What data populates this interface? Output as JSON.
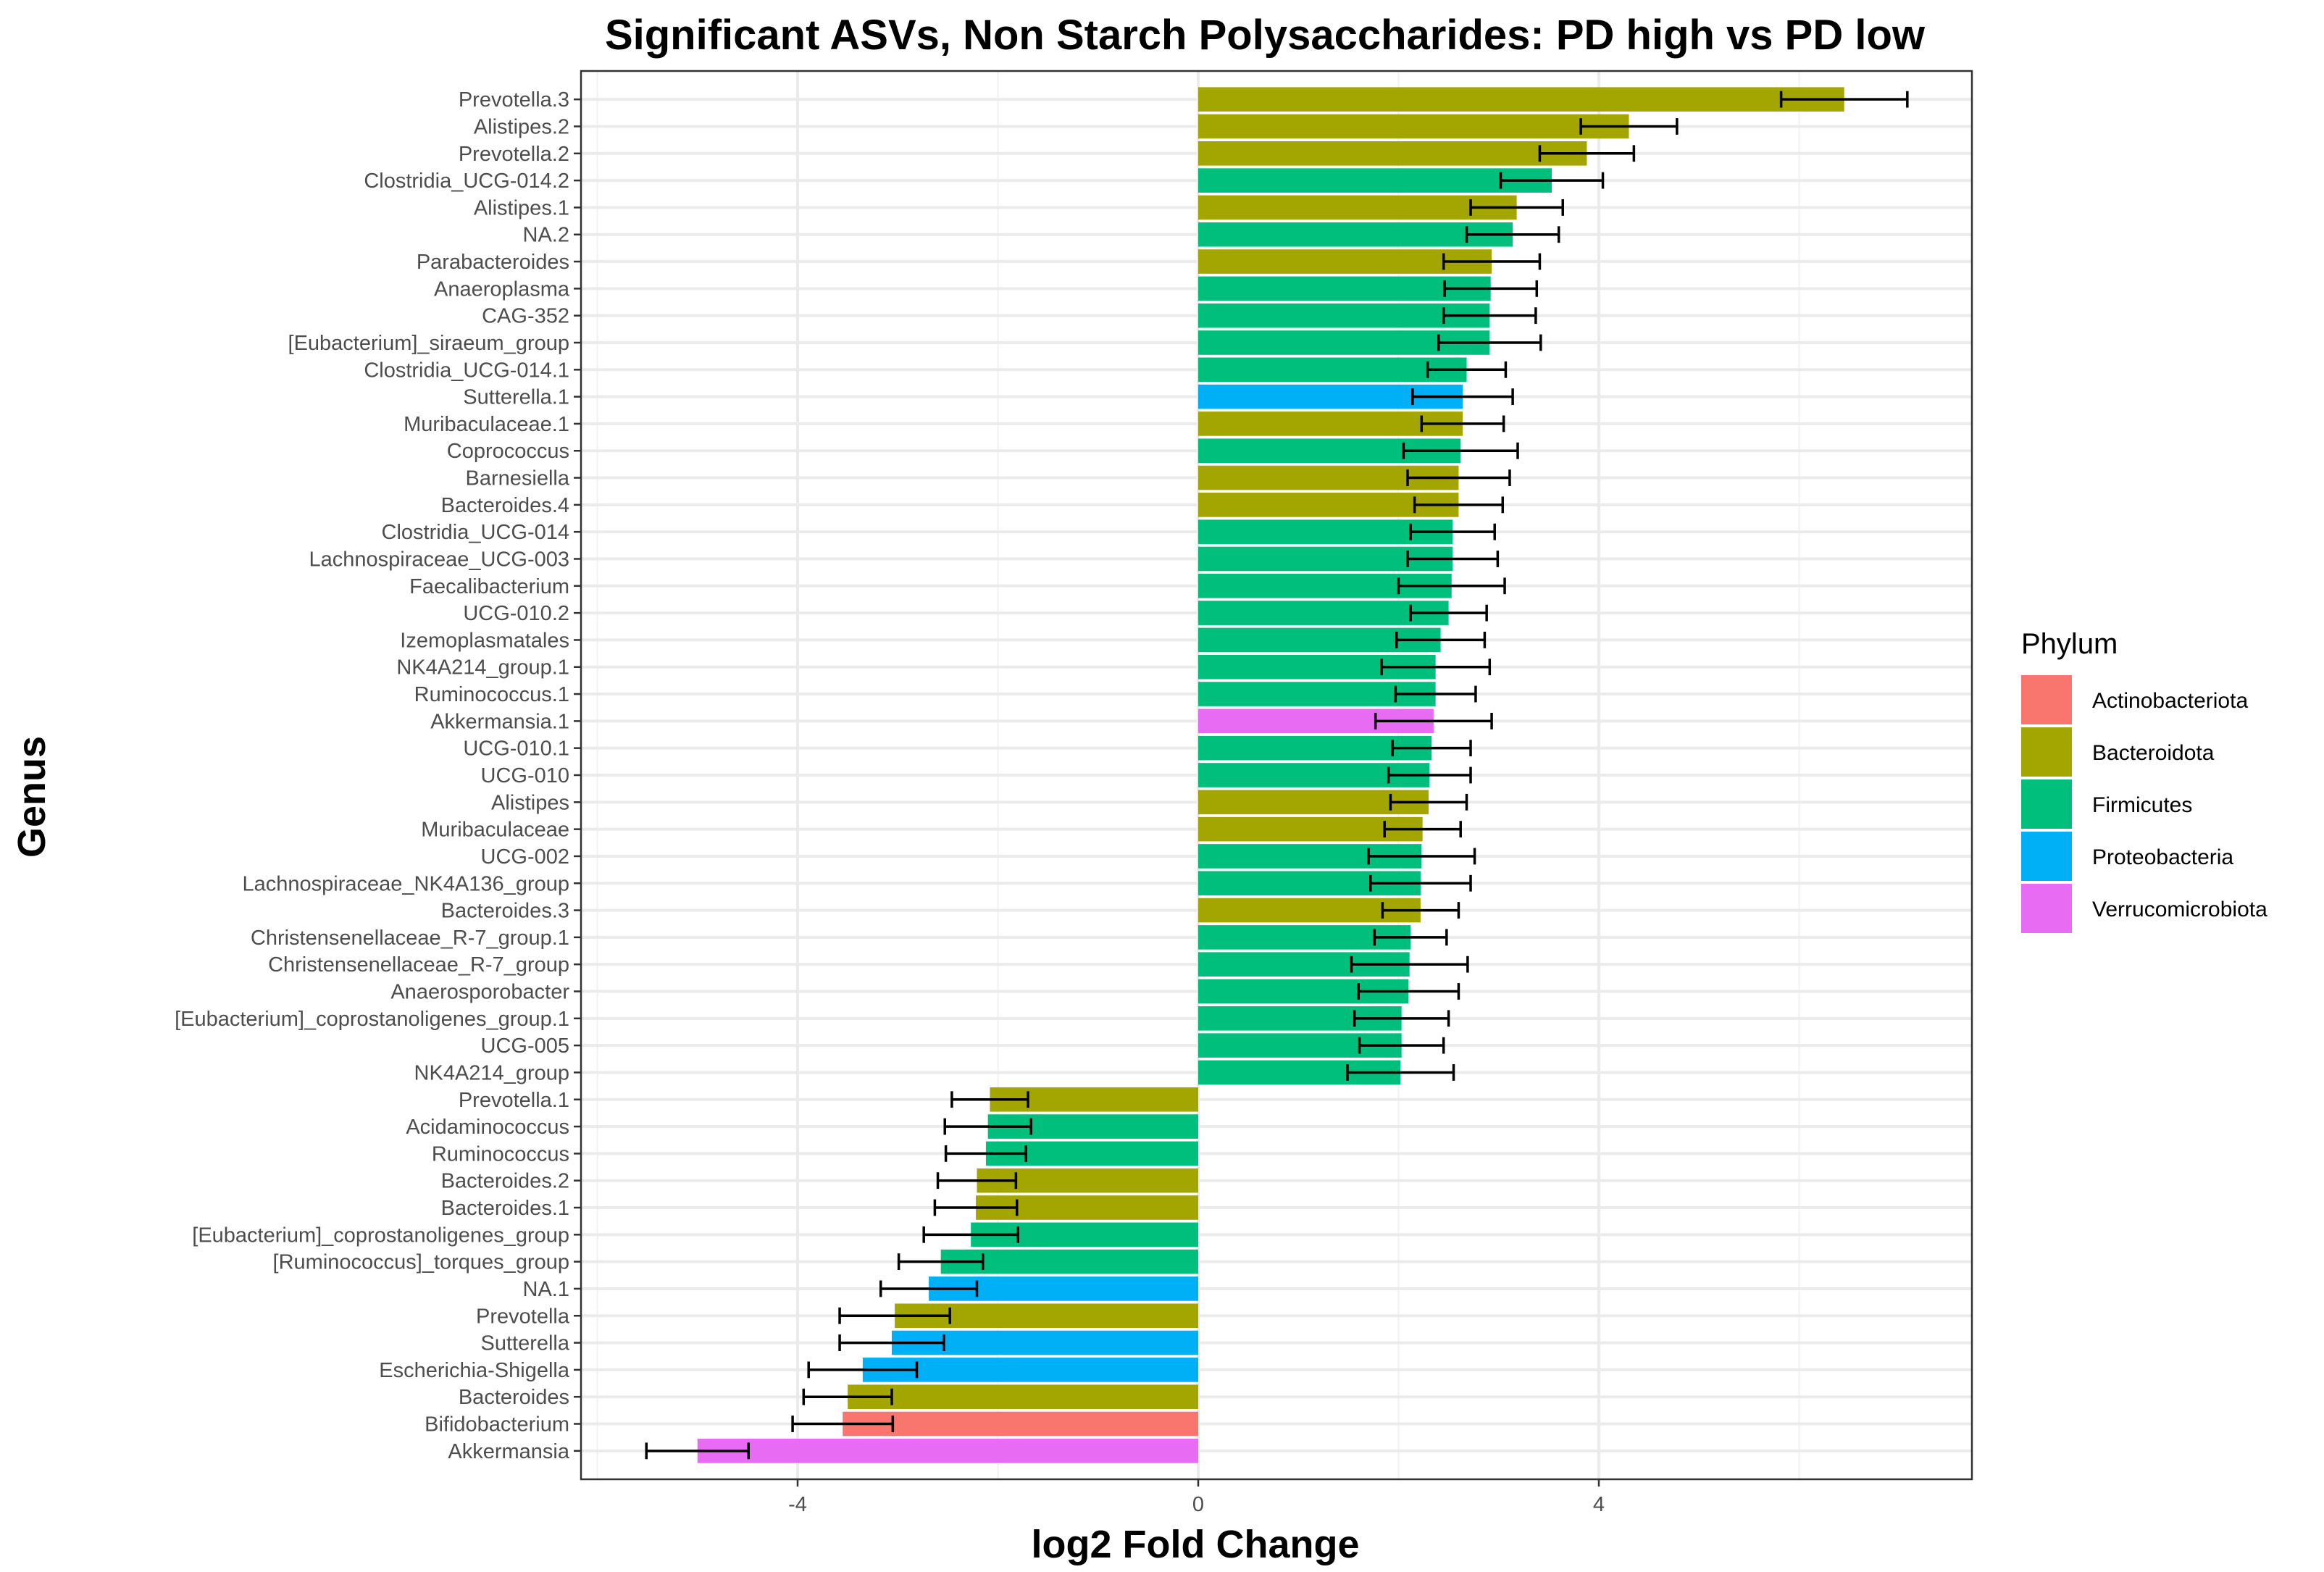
{
  "chart_data": {
    "type": "bar",
    "orientation": "horizontal",
    "title": "Significant ASVs, Non Starch Polysaccharides: PD high vs PD low",
    "xlabel": "log2 Fold Change",
    "ylabel": "Genus",
    "xlim": [
      -6.2,
      7.8
    ],
    "xticks": [
      -4,
      0,
      4
    ],
    "xtick_labels": [
      "-4",
      "0",
      "4"
    ],
    "grid": true,
    "legend": {
      "title": "Phylum",
      "position": "right",
      "entries": [
        {
          "label": "Actinobacteriota",
          "color": "#F8766D"
        },
        {
          "label": "Bacteroidota",
          "color": "#A3A500"
        },
        {
          "label": "Firmicutes",
          "color": "#00BF7D"
        },
        {
          "label": "Proteobacteria",
          "color": "#00B0F6"
        },
        {
          "label": "Verrucomicrobiota",
          "color": "#E76BF3"
        }
      ]
    },
    "bars": [
      {
        "genus": "Prevotella.3",
        "phylum": "Bacteroidota",
        "value": 6.45,
        "err_low": 5.82,
        "err_high": 7.08
      },
      {
        "genus": "Alistipes.2",
        "phylum": "Bacteroidota",
        "value": 4.3,
        "err_low": 3.82,
        "err_high": 4.78
      },
      {
        "genus": "Prevotella.2",
        "phylum": "Bacteroidota",
        "value": 3.88,
        "err_low": 3.41,
        "err_high": 4.35
      },
      {
        "genus": "Clostridia_UCG-014.2",
        "phylum": "Firmicutes",
        "value": 3.53,
        "err_low": 3.02,
        "err_high": 4.04
      },
      {
        "genus": "Alistipes.1",
        "phylum": "Bacteroidota",
        "value": 3.18,
        "err_low": 2.72,
        "err_high": 3.64
      },
      {
        "genus": "NA.2",
        "phylum": "Firmicutes",
        "value": 3.14,
        "err_low": 2.68,
        "err_high": 3.6
      },
      {
        "genus": "Parabacteroides",
        "phylum": "Bacteroidota",
        "value": 2.93,
        "err_low": 2.45,
        "err_high": 3.41
      },
      {
        "genus": "Anaeroplasma",
        "phylum": "Firmicutes",
        "value": 2.92,
        "err_low": 2.46,
        "err_high": 3.38
      },
      {
        "genus": "CAG-352",
        "phylum": "Firmicutes",
        "value": 2.91,
        "err_low": 2.45,
        "err_high": 3.37
      },
      {
        "genus": "[Eubacterium]_siraeum_group",
        "phylum": "Firmicutes",
        "value": 2.91,
        "err_low": 2.4,
        "err_high": 3.42
      },
      {
        "genus": "Clostridia_UCG-014.1",
        "phylum": "Firmicutes",
        "value": 2.68,
        "err_low": 2.29,
        "err_high": 3.07
      },
      {
        "genus": "Sutterella.1",
        "phylum": "Proteobacteria",
        "value": 2.64,
        "err_low": 2.14,
        "err_high": 3.14
      },
      {
        "genus": "Muribaculaceae.1",
        "phylum": "Bacteroidota",
        "value": 2.64,
        "err_low": 2.23,
        "err_high": 3.05
      },
      {
        "genus": "Coprococcus",
        "phylum": "Firmicutes",
        "value": 2.62,
        "err_low": 2.05,
        "err_high": 3.19
      },
      {
        "genus": "Barnesiella",
        "phylum": "Bacteroidota",
        "value": 2.6,
        "err_low": 2.09,
        "err_high": 3.11
      },
      {
        "genus": "Bacteroides.4",
        "phylum": "Bacteroidota",
        "value": 2.6,
        "err_low": 2.16,
        "err_high": 3.04
      },
      {
        "genus": "Clostridia_UCG-014",
        "phylum": "Firmicutes",
        "value": 2.54,
        "err_low": 2.12,
        "err_high": 2.96
      },
      {
        "genus": "Lachnospiraceae_UCG-003",
        "phylum": "Firmicutes",
        "value": 2.54,
        "err_low": 2.09,
        "err_high": 2.99
      },
      {
        "genus": "Faecalibacterium",
        "phylum": "Firmicutes",
        "value": 2.53,
        "err_low": 2.0,
        "err_high": 3.06
      },
      {
        "genus": "UCG-010.2",
        "phylum": "Firmicutes",
        "value": 2.5,
        "err_low": 2.12,
        "err_high": 2.88
      },
      {
        "genus": "Izemoplasmatales",
        "phylum": "Firmicutes",
        "value": 2.42,
        "err_low": 1.98,
        "err_high": 2.86
      },
      {
        "genus": "NK4A214_group.1",
        "phylum": "Firmicutes",
        "value": 2.37,
        "err_low": 1.83,
        "err_high": 2.91
      },
      {
        "genus": "Ruminococcus.1",
        "phylum": "Firmicutes",
        "value": 2.37,
        "err_low": 1.97,
        "err_high": 2.77
      },
      {
        "genus": "Akkermansia.1",
        "phylum": "Verrucomicrobiota",
        "value": 2.35,
        "err_low": 1.77,
        "err_high": 2.93
      },
      {
        "genus": "UCG-010.1",
        "phylum": "Firmicutes",
        "value": 2.33,
        "err_low": 1.94,
        "err_high": 2.72
      },
      {
        "genus": "UCG-010",
        "phylum": "Firmicutes",
        "value": 2.31,
        "err_low": 1.9,
        "err_high": 2.72
      },
      {
        "genus": "Alistipes",
        "phylum": "Bacteroidota",
        "value": 2.3,
        "err_low": 1.92,
        "err_high": 2.68
      },
      {
        "genus": "Muribaculaceae",
        "phylum": "Bacteroidota",
        "value": 2.24,
        "err_low": 1.86,
        "err_high": 2.62
      },
      {
        "genus": "UCG-002",
        "phylum": "Firmicutes",
        "value": 2.23,
        "err_low": 1.7,
        "err_high": 2.76
      },
      {
        "genus": "Lachnospiraceae_NK4A136_group",
        "phylum": "Firmicutes",
        "value": 2.22,
        "err_low": 1.72,
        "err_high": 2.72
      },
      {
        "genus": "Bacteroides.3",
        "phylum": "Bacteroidota",
        "value": 2.22,
        "err_low": 1.84,
        "err_high": 2.6
      },
      {
        "genus": "Christensenellaceae_R-7_group.1",
        "phylum": "Firmicutes",
        "value": 2.12,
        "err_low": 1.76,
        "err_high": 2.48
      },
      {
        "genus": "Christensenellaceae_R-7_group",
        "phylum": "Firmicutes",
        "value": 2.11,
        "err_low": 1.53,
        "err_high": 2.69
      },
      {
        "genus": "Anaerosporobacter",
        "phylum": "Firmicutes",
        "value": 2.1,
        "err_low": 1.6,
        "err_high": 2.6
      },
      {
        "genus": "[Eubacterium]_coprostanoligenes_group.1",
        "phylum": "Firmicutes",
        "value": 2.03,
        "err_low": 1.56,
        "err_high": 2.5
      },
      {
        "genus": "UCG-005",
        "phylum": "Firmicutes",
        "value": 2.03,
        "err_low": 1.61,
        "err_high": 2.45
      },
      {
        "genus": "NK4A214_group",
        "phylum": "Firmicutes",
        "value": 2.02,
        "err_low": 1.49,
        "err_high": 2.55
      },
      {
        "genus": "Prevotella.1",
        "phylum": "Bacteroidota",
        "value": -2.08,
        "err_low": -2.46,
        "err_high": -1.7
      },
      {
        "genus": "Acidaminococcus",
        "phylum": "Firmicutes",
        "value": -2.1,
        "err_low": -2.53,
        "err_high": -1.67
      },
      {
        "genus": "Ruminococcus",
        "phylum": "Firmicutes",
        "value": -2.12,
        "err_low": -2.52,
        "err_high": -1.72
      },
      {
        "genus": "Bacteroides.2",
        "phylum": "Bacteroidota",
        "value": -2.21,
        "err_low": -2.6,
        "err_high": -1.82
      },
      {
        "genus": "Bacteroides.1",
        "phylum": "Bacteroidota",
        "value": -2.22,
        "err_low": -2.63,
        "err_high": -1.81
      },
      {
        "genus": "[Eubacterium]_coprostanoligenes_group",
        "phylum": "Firmicutes",
        "value": -2.27,
        "err_low": -2.74,
        "err_high": -1.8
      },
      {
        "genus": "[Ruminococcus]_torques_group",
        "phylum": "Firmicutes",
        "value": -2.57,
        "err_low": -2.99,
        "err_high": -2.15
      },
      {
        "genus": "NA.1",
        "phylum": "Proteobacteria",
        "value": -2.69,
        "err_low": -3.17,
        "err_high": -2.21
      },
      {
        "genus": "Prevotella",
        "phylum": "Bacteroidota",
        "value": -3.03,
        "err_low": -3.58,
        "err_high": -2.48
      },
      {
        "genus": "Sutterella",
        "phylum": "Proteobacteria",
        "value": -3.06,
        "err_low": -3.58,
        "err_high": -2.54
      },
      {
        "genus": "Escherichia-Shigella",
        "phylum": "Proteobacteria",
        "value": -3.35,
        "err_low": -3.89,
        "err_high": -2.81
      },
      {
        "genus": "Bacteroides",
        "phylum": "Bacteroidota",
        "value": -3.5,
        "err_low": -3.94,
        "err_high": -3.06
      },
      {
        "genus": "Bifidobacterium",
        "phylum": "Actinobacteriota",
        "value": -3.55,
        "err_low": -4.05,
        "err_high": -3.05
      },
      {
        "genus": "Akkermansia",
        "phylum": "Verrucomicrobiota",
        "value": -5.0,
        "err_low": -5.51,
        "err_high": -4.49
      }
    ]
  }
}
